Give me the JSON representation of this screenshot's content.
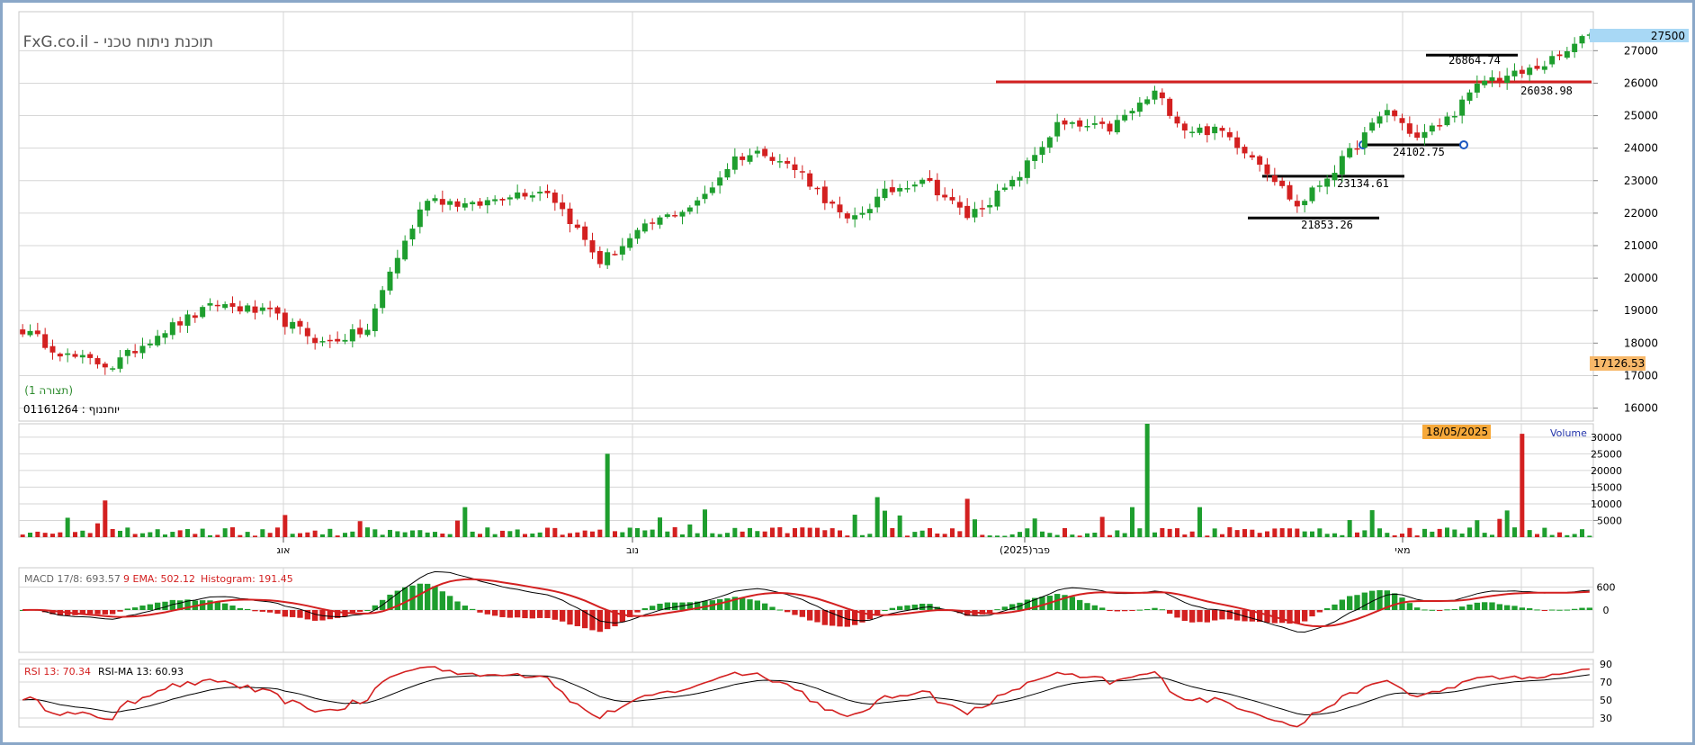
{
  "chart_data": [
    {
      "type": "candlestick",
      "title": "FxG.co.il - תוכנת ניתוח טכני",
      "subtitle": "(תצורה 1)",
      "instrument": "01161264 : יוחננוף",
      "ylim": [
        15600,
        28200
      ],
      "y_ticks": [
        16000,
        17000,
        18000,
        19000,
        20000,
        21000,
        22000,
        23000,
        24000,
        25000,
        26000,
        27000
      ],
      "x_ticks": [
        "אוג",
        "נוב",
        "פבר(2025)",
        "מאי"
      ],
      "last_price": "27500",
      "crosshair_price": "17126.53",
      "anchors": [
        {
          "x": 0,
          "v": 18400
        },
        {
          "x": 6,
          "v": 17600
        },
        {
          "x": 12,
          "v": 17300
        },
        {
          "x": 18,
          "v": 18300
        },
        {
          "x": 26,
          "v": 19200
        },
        {
          "x": 33,
          "v": 18900
        },
        {
          "x": 40,
          "v": 18000
        },
        {
          "x": 46,
          "v": 18400
        },
        {
          "x": 49,
          "v": 20200
        },
        {
          "x": 54,
          "v": 22500
        },
        {
          "x": 60,
          "v": 22200
        },
        {
          "x": 65,
          "v": 22600
        },
        {
          "x": 70,
          "v": 22700
        },
        {
          "x": 73,
          "v": 21800
        },
        {
          "x": 77,
          "v": 20500
        },
        {
          "x": 84,
          "v": 21700
        },
        {
          "x": 90,
          "v": 22300
        },
        {
          "x": 95,
          "v": 23700
        },
        {
          "x": 99,
          "v": 23900
        },
        {
          "x": 104,
          "v": 23200
        },
        {
          "x": 110,
          "v": 21700
        },
        {
          "x": 115,
          "v": 22600
        },
        {
          "x": 120,
          "v": 23100
        },
        {
          "x": 126,
          "v": 21900
        },
        {
          "x": 132,
          "v": 22900
        },
        {
          "x": 138,
          "v": 24700
        },
        {
          "x": 145,
          "v": 24600
        },
        {
          "x": 151,
          "v": 25700
        },
        {
          "x": 155,
          "v": 24600
        },
        {
          "x": 160,
          "v": 24500
        },
        {
          "x": 165,
          "v": 23600
        },
        {
          "x": 170,
          "v": 22200
        },
        {
          "x": 176,
          "v": 23600
        },
        {
          "x": 182,
          "v": 25200
        },
        {
          "x": 186,
          "v": 24300
        },
        {
          "x": 190,
          "v": 24900
        },
        {
          "x": 195,
          "v": 26100
        },
        {
          "x": 200,
          "v": 26300
        },
        {
          "x": 205,
          "v": 26800
        },
        {
          "x": 209,
          "v": 27500
        }
      ],
      "levels": [
        {
          "label": "26864.74",
          "value": 26864.74,
          "color": "#000000"
        },
        {
          "label": "26038.98",
          "value": 26038.98,
          "color": "#d32020"
        },
        {
          "label": "24102.75",
          "value": 24102.75,
          "color": "#000000"
        },
        {
          "label": "23134.61",
          "value": 23134.61,
          "color": "#000000"
        },
        {
          "label": "21853.26",
          "value": 21853.26,
          "color": "#000000"
        }
      ]
    },
    {
      "type": "bar",
      "title": "Volume",
      "date_label": "18/05/2025",
      "ylim": [
        0,
        34000
      ],
      "y_ticks": [
        5000,
        10000,
        15000,
        20000,
        25000,
        30000
      ],
      "spikes": [
        {
          "x": 11,
          "v": 11000
        },
        {
          "x": 59,
          "v": 9000
        },
        {
          "x": 78,
          "v": 25000
        },
        {
          "x": 114,
          "v": 12000
        },
        {
          "x": 126,
          "v": 11500
        },
        {
          "x": 148,
          "v": 9000
        },
        {
          "x": 150,
          "v": 34000
        },
        {
          "x": 157,
          "v": 9000
        },
        {
          "x": 198,
          "v": 8000
        },
        {
          "x": 200,
          "v": 31000
        }
      ]
    },
    {
      "type": "line",
      "title": "MACD",
      "series": [
        {
          "name": "MACD 17/8: 693.57",
          "color": "#000000"
        },
        {
          "name": "9 EMA: 502.12",
          "color": "#d32020"
        },
        {
          "name": "Histogram: 191.45",
          "color": "#d32020"
        }
      ],
      "ylim": [
        -1100,
        1100
      ],
      "y_ticks": [
        0,
        600
      ]
    },
    {
      "type": "line",
      "title": "RSI",
      "series": [
        {
          "name": "RSI 13: 70.34",
          "color": "#d32020"
        },
        {
          "name": "RSI-MA 13: 60.93",
          "color": "#000000"
        }
      ],
      "ylim": [
        20,
        95
      ],
      "y_ticks": [
        30,
        50,
        70,
        90
      ]
    }
  ],
  "colors": {
    "up": "#1e9e2e",
    "down": "#d32020",
    "grid": "#d6d6d6",
    "frame": "#8aa7c8"
  }
}
